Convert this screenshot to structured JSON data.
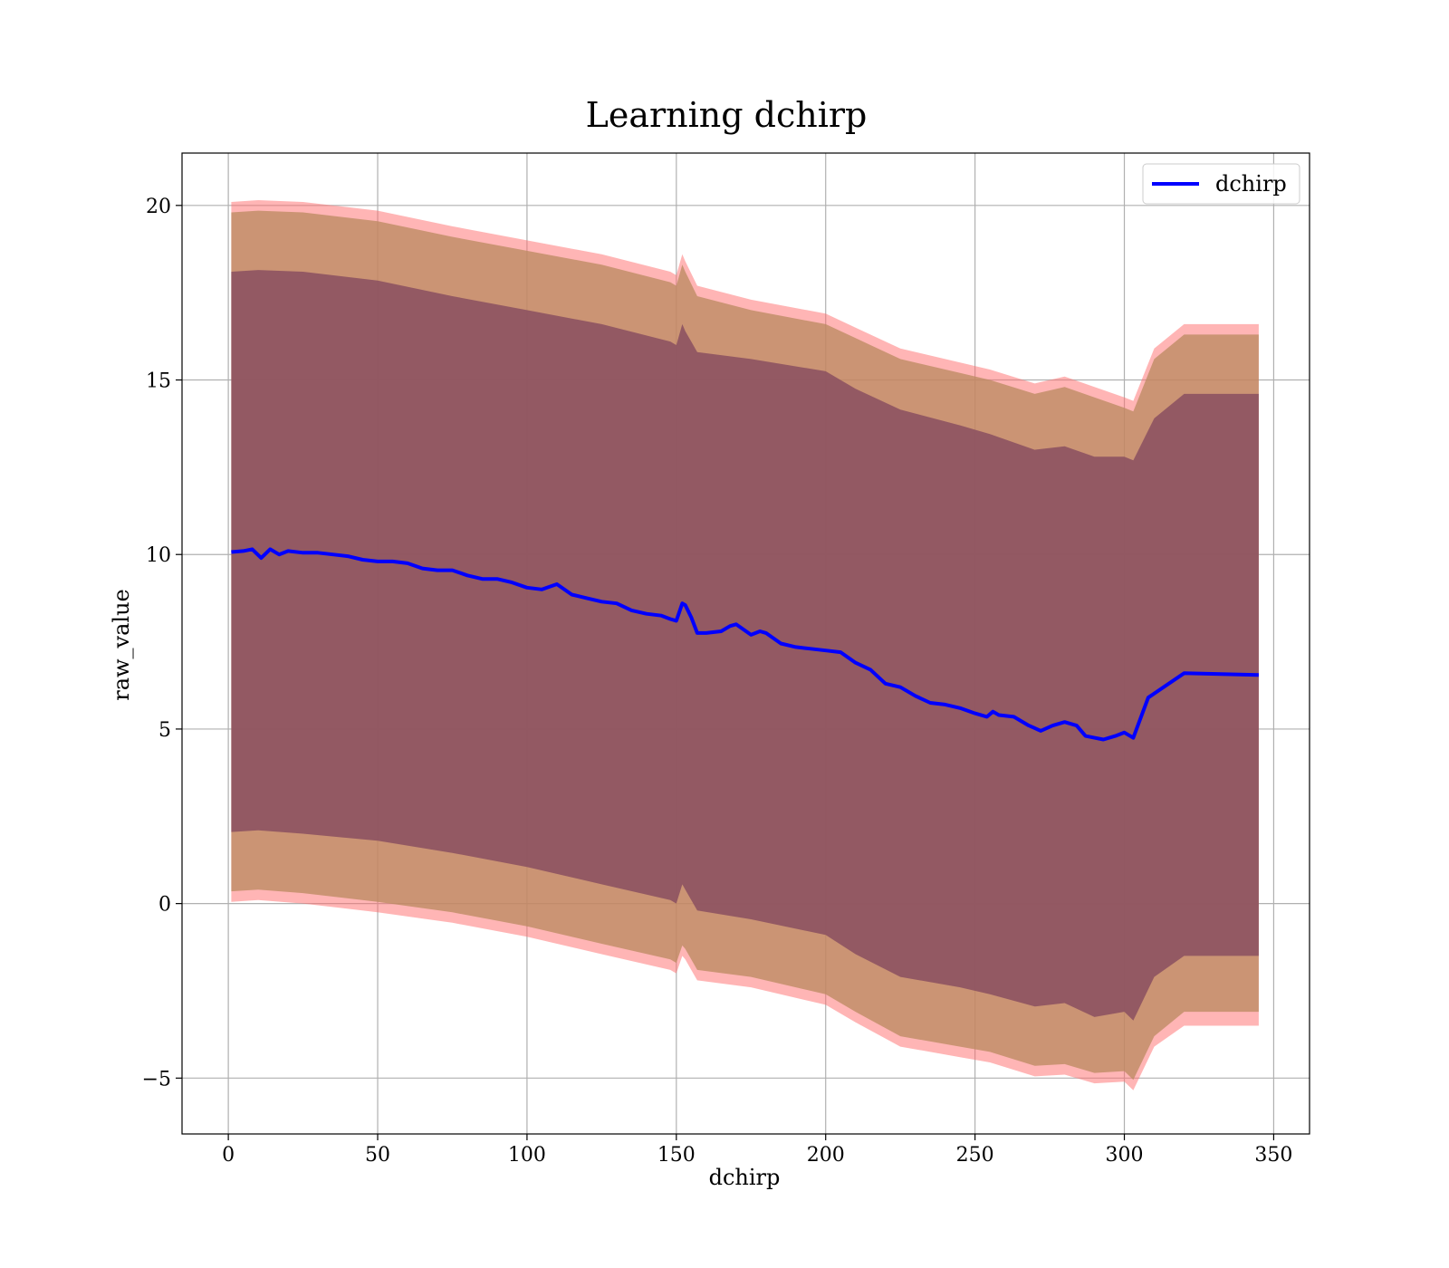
{
  "chart_data": {
    "type": "line",
    "title": "Learning dchirp",
    "xlabel": "dchirp",
    "ylabel": "raw_value",
    "xlim": [
      -15.5,
      362
    ],
    "ylim": [
      -6.6,
      21.5
    ],
    "xticks": [
      0,
      50,
      100,
      150,
      200,
      250,
      300,
      350
    ],
    "yticks": [
      -5,
      0,
      5,
      10,
      15,
      20
    ],
    "xtick_labels": [
      "0",
      "50",
      "100",
      "150",
      "200",
      "250",
      "300",
      "350"
    ],
    "ytick_labels": [
      "−5",
      "0",
      "5",
      "10",
      "15",
      "20"
    ],
    "grid": true,
    "legend": {
      "position": "top-right",
      "entries": [
        "dchirp"
      ]
    },
    "colors": {
      "line": "#0000ff",
      "outer_band": "#ff6b6b",
      "middle_band": "#b9895f",
      "inner_band": "#8a4f60"
    },
    "series": [
      {
        "name": "dchirp",
        "x": [
          1,
          5,
          8,
          11,
          14,
          17,
          20,
          25,
          30,
          35,
          40,
          45,
          50,
          55,
          60,
          65,
          70,
          75,
          80,
          85,
          90,
          95,
          100,
          105,
          110,
          115,
          120,
          125,
          130,
          135,
          140,
          145,
          148,
          150,
          152,
          153,
          155,
          157,
          160,
          165,
          168,
          170,
          175,
          178,
          180,
          185,
          190,
          195,
          200,
          205,
          210,
          215,
          220,
          225,
          230,
          235,
          240,
          245,
          250,
          254,
          256,
          258,
          263,
          268,
          272,
          276,
          280,
          284,
          287,
          290,
          293,
          297,
          300,
          303,
          308,
          320,
          345
        ],
        "y": [
          10.07,
          10.1,
          10.15,
          9.9,
          10.15,
          10.0,
          10.1,
          10.05,
          10.05,
          10.0,
          9.95,
          9.85,
          9.8,
          9.8,
          9.75,
          9.6,
          9.55,
          9.55,
          9.4,
          9.3,
          9.3,
          9.2,
          9.05,
          9.0,
          9.15,
          8.85,
          8.75,
          8.65,
          8.6,
          8.4,
          8.3,
          8.25,
          8.15,
          8.1,
          8.6,
          8.55,
          8.2,
          7.75,
          7.75,
          7.8,
          7.95,
          8.0,
          7.7,
          7.8,
          7.75,
          7.45,
          7.35,
          7.3,
          7.25,
          7.2,
          6.9,
          6.7,
          6.3,
          6.2,
          5.95,
          5.75,
          5.7,
          5.6,
          5.45,
          5.35,
          5.5,
          5.4,
          5.35,
          5.1,
          4.95,
          5.1,
          5.2,
          5.1,
          4.8,
          4.75,
          4.7,
          4.8,
          4.9,
          4.75,
          5.9,
          6.6,
          6.55
        ]
      }
    ],
    "bands": [
      {
        "x": [
          1,
          10,
          25,
          50,
          75,
          100,
          125,
          148,
          150,
          152,
          153,
          157,
          175,
          200,
          210,
          225,
          245,
          255,
          270,
          280,
          290,
          300,
          303,
          310,
          320,
          345
        ],
        "upper": [
          20.1,
          20.15,
          20.1,
          19.85,
          19.4,
          19.0,
          18.6,
          18.1,
          18.0,
          18.6,
          18.4,
          17.7,
          17.3,
          16.9,
          16.5,
          15.9,
          15.5,
          15.3,
          14.9,
          15.1,
          14.8,
          14.5,
          14.4,
          15.9,
          16.6,
          16.6
        ],
        "lower": [
          0.05,
          0.1,
          0.0,
          -0.25,
          -0.55,
          -0.95,
          -1.45,
          -1.9,
          -2.0,
          -1.5,
          -1.6,
          -2.2,
          -2.4,
          -2.9,
          -3.4,
          -4.1,
          -4.4,
          -4.55,
          -4.95,
          -4.9,
          -5.15,
          -5.1,
          -5.35,
          -4.1,
          -3.5,
          -3.5
        ]
      },
      {
        "x": [
          1,
          10,
          25,
          50,
          75,
          100,
          125,
          148,
          150,
          152,
          153,
          157,
          175,
          200,
          210,
          225,
          245,
          255,
          270,
          280,
          290,
          300,
          303,
          310,
          320,
          345
        ],
        "upper": [
          19.8,
          19.85,
          19.8,
          19.55,
          19.1,
          18.7,
          18.3,
          17.8,
          17.7,
          18.3,
          18.1,
          17.4,
          17.0,
          16.6,
          16.2,
          15.6,
          15.2,
          15.0,
          14.6,
          14.8,
          14.5,
          14.2,
          14.1,
          15.6,
          16.3,
          16.3
        ],
        "lower": [
          0.35,
          0.4,
          0.3,
          0.05,
          -0.25,
          -0.65,
          -1.15,
          -1.6,
          -1.7,
          -1.2,
          -1.3,
          -1.9,
          -2.1,
          -2.6,
          -3.1,
          -3.8,
          -4.1,
          -4.25,
          -4.65,
          -4.6,
          -4.85,
          -4.8,
          -5.05,
          -3.8,
          -3.1,
          -3.1
        ]
      },
      {
        "x": [
          1,
          10,
          25,
          50,
          75,
          100,
          125,
          148,
          150,
          152,
          153,
          157,
          175,
          200,
          210,
          225,
          245,
          255,
          270,
          280,
          290,
          300,
          303,
          310,
          320,
          345
        ],
        "upper": [
          18.1,
          18.15,
          18.1,
          17.85,
          17.4,
          17.0,
          16.6,
          16.1,
          16.0,
          16.6,
          16.4,
          15.8,
          15.6,
          15.25,
          14.75,
          14.15,
          13.7,
          13.45,
          13.0,
          13.1,
          12.8,
          12.8,
          12.7,
          13.9,
          14.6,
          14.6
        ],
        "lower": [
          2.05,
          2.1,
          2.0,
          1.8,
          1.45,
          1.05,
          0.55,
          0.1,
          0.0,
          0.55,
          0.4,
          -0.2,
          -0.45,
          -0.9,
          -1.45,
          -2.1,
          -2.4,
          -2.6,
          -2.95,
          -2.85,
          -3.25,
          -3.1,
          -3.35,
          -2.1,
          -1.5,
          -1.5
        ]
      }
    ]
  }
}
